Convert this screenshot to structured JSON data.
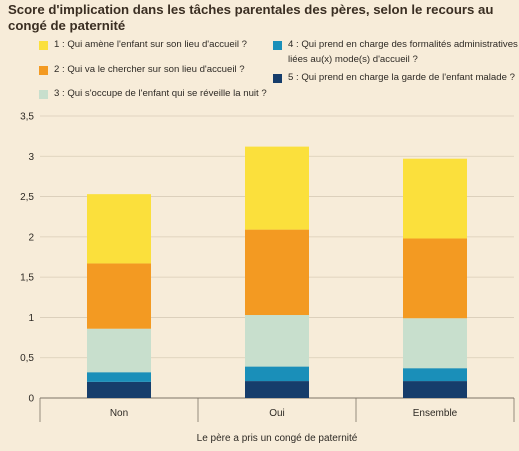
{
  "chart_data": {
    "type": "bar",
    "stacked": true,
    "title": "Score d'implication dans les tâches parentales des pères, selon le recours au congé de paternité",
    "xlabel": "Le père a pris un congé de paternité",
    "ylabel": "",
    "categories": [
      "Non",
      "Oui",
      "Ensemble"
    ],
    "ylim": [
      0,
      3.5
    ],
    "yticks": [
      "0",
      "0,5",
      "1",
      "1,5",
      "2",
      "2,5",
      "3",
      "3,5"
    ],
    "ytick_values": [
      0,
      0.5,
      1,
      1.5,
      2,
      2.5,
      3,
      3.5
    ],
    "grid": true,
    "series": [
      {
        "name": "5 : Qui prend en charge la garde de l'enfant malade ?",
        "values": [
          0.2,
          0.21,
          0.21
        ],
        "color": "#163d6b"
      },
      {
        "name": "4 : Qui prend en charge des formalités administratives liées au(x) mode(s) d'accueil ?",
        "values": [
          0.12,
          0.18,
          0.16
        ],
        "color": "#1a8fb9"
      },
      {
        "name": "3 : Qui s'occupe de l'enfant qui se réveille la nuit ?",
        "values": [
          0.54,
          0.64,
          0.62
        ],
        "color": "#c8dfcd"
      },
      {
        "name": "2 : Qui va le chercher sur son lieu d'accueil ?",
        "values": [
          0.81,
          1.06,
          0.99
        ],
        "color": "#f39a22"
      },
      {
        "name": "1 : Qui amène l'enfant sur son lieu d'accueil ?",
        "values": [
          0.86,
          1.03,
          0.99
        ],
        "color": "#fbe03c"
      }
    ],
    "legend": {
      "placement": "top",
      "items": [
        {
          "label": "1 : Qui amène l'enfant sur son lieu d'accueil ?",
          "color": "#fbe03c"
        },
        {
          "label": "2 : Qui va le chercher sur son lieu d'accueil ?",
          "color": "#f39a22"
        },
        {
          "label": "3 : Qui s'occupe de l'enfant qui se réveille la nuit ?",
          "color": "#c8dfcd"
        },
        {
          "label_line1": "4 : Qui prend en charge des formalités administratives",
          "label_line2": "liées au(x) mode(s) d'accueil ?",
          "color": "#1a8fb9"
        },
        {
          "label": "5 : Qui prend en charge la garde de l'enfant malade ?",
          "color": "#163d6b"
        }
      ]
    }
  }
}
